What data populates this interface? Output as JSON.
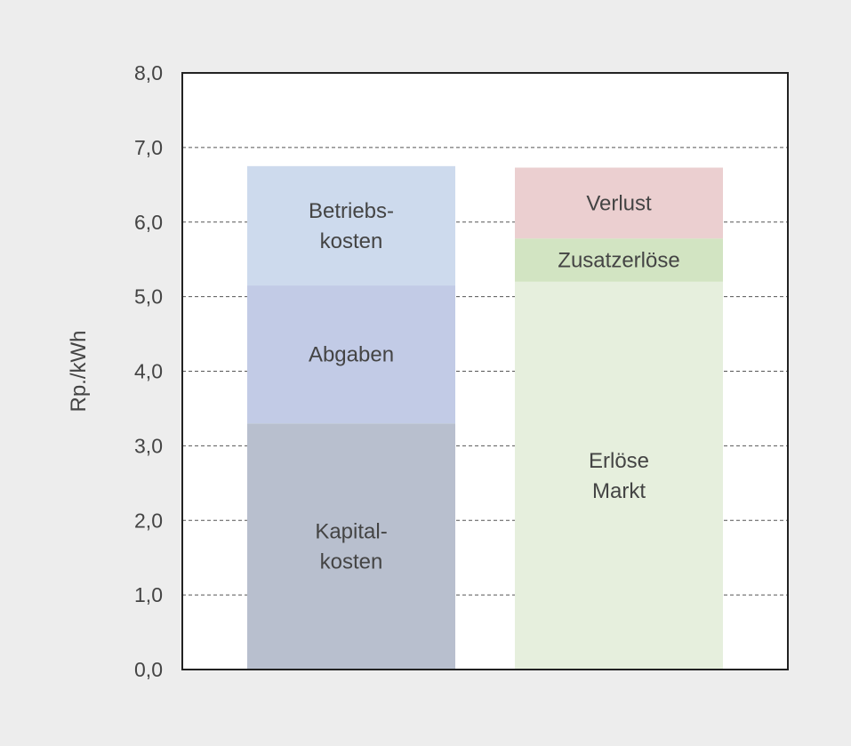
{
  "chart_data": {
    "type": "bar",
    "stacked": true,
    "title": "",
    "xlabel": "",
    "ylabel": "Rp./kWh",
    "ylim": [
      0,
      8
    ],
    "yticks": [
      "0,0",
      "1,0",
      "2,0",
      "3,0",
      "4,0",
      "5,0",
      "6,0",
      "7,0",
      "8,0"
    ],
    "grid": true,
    "legend": "none",
    "bars": [
      {
        "segments": [
          {
            "lines": [
              "Kapital-",
              "kosten"
            ],
            "value": 3.3,
            "color": "#b8bfce"
          },
          {
            "lines": [
              "Abgaben"
            ],
            "value": 1.85,
            "color": "#c2cbe6"
          },
          {
            "lines": [
              "Betriebs-",
              "kosten"
            ],
            "value": 1.6,
            "color": "#cddaed"
          }
        ]
      },
      {
        "segments": [
          {
            "lines": [
              "Erlöse",
              "Markt"
            ],
            "value": 5.2,
            "color": "#e6efdd"
          },
          {
            "lines": [
              "Zusatzerlöse"
            ],
            "value": 0.58,
            "color": "#d2e4c2"
          },
          {
            "lines": [
              "Verlust"
            ],
            "value": 0.95,
            "color": "#ebcfd0"
          }
        ]
      }
    ],
    "colors": {
      "background": "#ededed",
      "plot_bg": "#ffffff",
      "axis": "#222222",
      "grid": "#555555",
      "text": "#444444"
    }
  }
}
